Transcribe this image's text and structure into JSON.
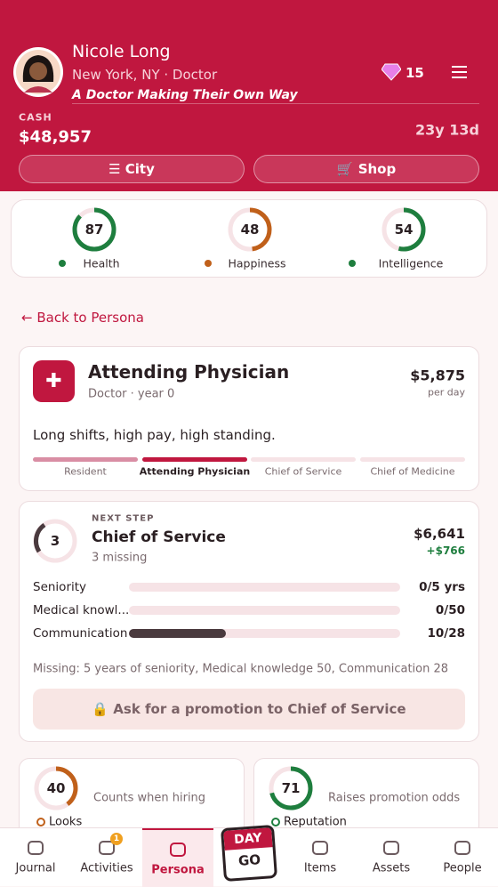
{
  "header": {
    "name": "Nicole Long",
    "subtitle": "New York, NY · Doctor",
    "tagline": "A Doctor Making Their Own Way",
    "gems": 15,
    "cash_label": "CASH",
    "cash": "$48,957",
    "age": "23y 13d",
    "buttons": [
      "City",
      "Shop"
    ]
  },
  "ring_range": [
    0,
    100
  ],
  "stats": [
    {
      "value": 87,
      "label": "Health",
      "color": "#1e7e3e"
    },
    {
      "value": 48,
      "label": "Happiness",
      "color": "#c0601a"
    },
    {
      "value": 54,
      "label": "Intelligence",
      "color": "#1e7e3e"
    }
  ],
  "back": "Back to Persona",
  "job": {
    "title": "Attending Physician",
    "meta": "Doctor · year 0",
    "pay": "$5,875",
    "pay_unit": "per day",
    "description": "Long shifts, high pay, high standing.",
    "ladder": [
      "Resident",
      "Attending Physician",
      "Chief of Service",
      "Chief of Medicine"
    ],
    "ladder_current": 1
  },
  "next": {
    "eyebrow": "NEXT STEP",
    "ring": 3,
    "title": "Chief of Service",
    "missing": "3 missing",
    "pay": "$6,641",
    "raise": "+$766",
    "requirements": [
      {
        "name": "Seniority",
        "value": 0,
        "max": 5,
        "label": "0/5 yrs"
      },
      {
        "name": "Medical knowl...",
        "value": 0,
        "max": 50,
        "label": "0/50"
      },
      {
        "name": "Communication",
        "value": 10,
        "max": 28,
        "label": "10/28"
      }
    ],
    "missing_note": "Missing: 5 years of seniority, Medical knowledge 50, Communication 28",
    "button": "Ask for a promotion to Chief of Service"
  },
  "traits": [
    {
      "value": 40,
      "note": "Counts when hiring",
      "label": "Looks",
      "color": "#c0601a"
    },
    {
      "value": 71,
      "note": "Raises promotion odds",
      "label": "Reputation",
      "color": "#1e7e3e"
    }
  ],
  "nav": {
    "items": [
      "Journal",
      "Activities",
      "Persona",
      "Items",
      "Assets",
      "People"
    ],
    "active": 2,
    "badge": 1,
    "go": [
      "DAY",
      "GO"
    ]
  }
}
